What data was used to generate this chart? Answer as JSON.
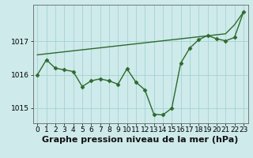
{
  "x": [
    0,
    1,
    2,
    3,
    4,
    5,
    6,
    7,
    8,
    9,
    10,
    11,
    12,
    13,
    14,
    15,
    16,
    17,
    18,
    19,
    20,
    21,
    22,
    23
  ],
  "y_main": [
    1016.0,
    1016.45,
    1016.2,
    1016.15,
    1016.1,
    1015.65,
    1015.82,
    1015.88,
    1015.82,
    1015.72,
    1016.18,
    1015.78,
    1015.55,
    1014.82,
    1014.8,
    1015.0,
    1016.35,
    1016.8,
    1017.05,
    1017.18,
    1017.08,
    1017.02,
    1017.12,
    1017.88
  ],
  "y_trend": [
    1016.6,
    1016.63,
    1016.66,
    1016.69,
    1016.72,
    1016.75,
    1016.78,
    1016.81,
    1016.84,
    1016.87,
    1016.9,
    1016.93,
    1016.96,
    1016.99,
    1017.02,
    1017.05,
    1017.08,
    1017.11,
    1017.14,
    1017.17,
    1017.2,
    1017.23,
    1017.5,
    1017.88
  ],
  "line_color": "#2d6a2d",
  "bg_color": "#ceeaea",
  "grid_color": "#9ecece",
  "xlabel": "Graphe pression niveau de la mer (hPa)",
  "ylim": [
    1014.55,
    1018.1
  ],
  "xlim": [
    -0.5,
    23.5
  ],
  "yticks": [
    1015,
    1016,
    1017
  ],
  "xticks": [
    0,
    1,
    2,
    3,
    4,
    5,
    6,
    7,
    8,
    9,
    10,
    11,
    12,
    13,
    14,
    15,
    16,
    17,
    18,
    19,
    20,
    21,
    22,
    23
  ],
  "marker": "D",
  "marker_size": 2.5,
  "line_width": 1.0,
  "xlabel_fontsize": 8,
  "tick_fontsize": 6.5
}
